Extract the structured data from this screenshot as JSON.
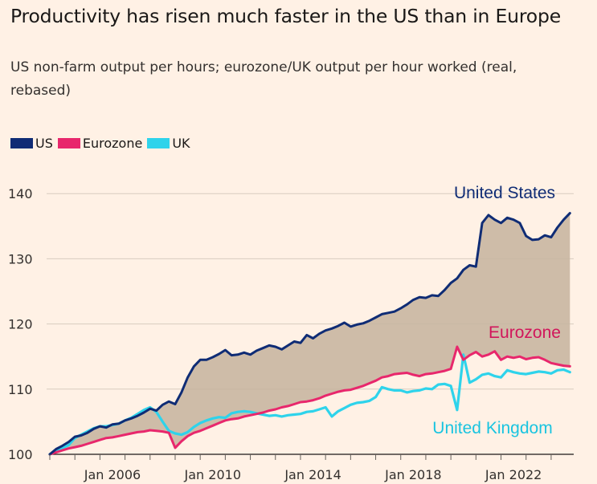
{
  "title": "Productivity has risen much faster in the US than in Europe",
  "subtitle": "US non-farm output per hours; eurozone/UK output per hour worked (real, rebased)",
  "colors": {
    "background": "#fff1e5",
    "us": "#0f2c75",
    "eurozone": "#e8276c",
    "uk": "#2ed3eb",
    "gap_fill": "#c6b39e",
    "grid": "#d8ccbf"
  },
  "chart_data": {
    "type": "line",
    "title": "Productivity has risen much faster in the US than in Europe",
    "subtitle": "US non-farm output per hours; eurozone/UK output per hour worked (real, rebased)",
    "xlabel": "",
    "ylabel": "",
    "ylim": [
      100,
      142
    ],
    "yticks": [
      100,
      110,
      120,
      130,
      140
    ],
    "xtick_labels": [
      "Jan 2006",
      "Jan 2010",
      "Jan 2014",
      "Jan 2018",
      "Jan 2022"
    ],
    "xtick_values": [
      2006,
      2010,
      2014,
      2018,
      2022
    ],
    "xlim": [
      2004.0,
      2024.9
    ],
    "grid": "horizontal",
    "legend_position": "top-left",
    "fill_between": [
      "US",
      "Eurozone"
    ],
    "legend": [
      "US",
      "Eurozone",
      "UK"
    ],
    "series": [
      {
        "name": "US",
        "label": "United States",
        "color": "#0f2c75",
        "x": [
          2004.0,
          2004.25,
          2004.5,
          2004.75,
          2005.0,
          2005.25,
          2005.5,
          2005.75,
          2006.0,
          2006.25,
          2006.5,
          2006.75,
          2007.0,
          2007.25,
          2007.5,
          2007.75,
          2008.0,
          2008.25,
          2008.5,
          2008.75,
          2009.0,
          2009.25,
          2009.5,
          2009.75,
          2010.0,
          2010.25,
          2010.5,
          2010.75,
          2011.0,
          2011.25,
          2011.5,
          2011.75,
          2012.0,
          2012.25,
          2012.5,
          2012.75,
          2013.0,
          2013.25,
          2013.5,
          2013.75,
          2014.0,
          2014.25,
          2014.5,
          2014.75,
          2015.0,
          2015.25,
          2015.5,
          2015.75,
          2016.0,
          2016.25,
          2016.5,
          2016.75,
          2017.0,
          2017.25,
          2017.5,
          2017.75,
          2018.0,
          2018.25,
          2018.5,
          2018.75,
          2019.0,
          2019.25,
          2019.5,
          2019.75,
          2020.0,
          2020.25,
          2020.5,
          2020.75,
          2021.0,
          2021.25,
          2021.5,
          2021.75,
          2022.0,
          2022.25,
          2022.5,
          2022.75,
          2023.0,
          2023.25,
          2023.5,
          2023.75,
          2024.0,
          2024.25,
          2024.5,
          2024.75
        ],
        "values": [
          100.0,
          100.8,
          101.3,
          101.9,
          102.7,
          102.9,
          103.3,
          103.9,
          104.3,
          104.1,
          104.6,
          104.7,
          105.2,
          105.5,
          105.9,
          106.4,
          107.0,
          106.7,
          107.6,
          108.1,
          107.7,
          109.5,
          111.8,
          113.5,
          114.5,
          114.5,
          114.9,
          115.4,
          116.0,
          115.2,
          115.3,
          115.6,
          115.3,
          115.9,
          116.3,
          116.7,
          116.5,
          116.1,
          116.7,
          117.3,
          117.1,
          118.3,
          117.8,
          118.5,
          119.0,
          119.3,
          119.7,
          120.2,
          119.6,
          119.9,
          120.1,
          120.5,
          121.0,
          121.5,
          121.7,
          121.9,
          122.4,
          123.0,
          123.7,
          124.1,
          124.0,
          124.4,
          124.3,
          125.2,
          126.3,
          127.0,
          128.3,
          129.0,
          128.8,
          135.5,
          136.7,
          136.0,
          135.5,
          136.3,
          136.0,
          135.5,
          133.5,
          132.9,
          133.0,
          133.6,
          133.3,
          134.8,
          136.0,
          137.0
        ]
      },
      {
        "name": "Eurozone",
        "label": "Eurozone",
        "color": "#e8276c",
        "x": [
          2004.0,
          2004.25,
          2004.5,
          2004.75,
          2005.0,
          2005.25,
          2005.5,
          2005.75,
          2006.0,
          2006.25,
          2006.5,
          2006.75,
          2007.0,
          2007.25,
          2007.5,
          2007.75,
          2008.0,
          2008.25,
          2008.5,
          2008.75,
          2009.0,
          2009.25,
          2009.5,
          2009.75,
          2010.0,
          2010.25,
          2010.5,
          2010.75,
          2011.0,
          2011.25,
          2011.5,
          2011.75,
          2012.0,
          2012.25,
          2012.5,
          2012.75,
          2013.0,
          2013.25,
          2013.5,
          2013.75,
          2014.0,
          2014.25,
          2014.5,
          2014.75,
          2015.0,
          2015.25,
          2015.5,
          2015.75,
          2016.0,
          2016.25,
          2016.5,
          2016.75,
          2017.0,
          2017.25,
          2017.5,
          2017.75,
          2018.0,
          2018.25,
          2018.5,
          2018.75,
          2019.0,
          2019.25,
          2019.5,
          2019.75,
          2020.0,
          2020.25,
          2020.5,
          2020.75,
          2021.0,
          2021.25,
          2021.5,
          2021.75,
          2022.0,
          2022.25,
          2022.5,
          2022.75,
          2023.0,
          2023.25,
          2023.5,
          2023.75,
          2024.0,
          2024.25,
          2024.5,
          2024.75
        ],
        "values": [
          100.0,
          100.3,
          100.6,
          100.9,
          101.1,
          101.3,
          101.6,
          101.9,
          102.2,
          102.5,
          102.6,
          102.8,
          103.0,
          103.2,
          103.4,
          103.5,
          103.7,
          103.6,
          103.5,
          103.3,
          101.0,
          102.0,
          102.8,
          103.3,
          103.6,
          104.0,
          104.4,
          104.8,
          105.2,
          105.4,
          105.5,
          105.8,
          106.0,
          106.2,
          106.4,
          106.7,
          106.9,
          107.2,
          107.4,
          107.7,
          108.0,
          108.1,
          108.3,
          108.6,
          109.0,
          109.3,
          109.6,
          109.8,
          109.9,
          110.2,
          110.5,
          110.9,
          111.3,
          111.8,
          112.0,
          112.3,
          112.4,
          112.5,
          112.2,
          112.0,
          112.3,
          112.4,
          112.6,
          112.8,
          113.1,
          116.5,
          114.5,
          115.2,
          115.7,
          115.0,
          115.3,
          115.8,
          114.5,
          115.0,
          114.8,
          115.0,
          114.6,
          114.8,
          114.9,
          114.5,
          114.0,
          113.8,
          113.6,
          113.5
        ]
      },
      {
        "name": "UK",
        "label": "United Kingdom",
        "color": "#2ed3eb",
        "x": [
          2004.0,
          2004.25,
          2004.5,
          2004.75,
          2005.0,
          2005.25,
          2005.5,
          2005.75,
          2006.0,
          2006.25,
          2006.5,
          2006.75,
          2007.0,
          2007.25,
          2007.5,
          2007.75,
          2008.0,
          2008.25,
          2008.5,
          2008.75,
          2009.0,
          2009.25,
          2009.5,
          2009.75,
          2010.0,
          2010.25,
          2010.5,
          2010.75,
          2011.0,
          2011.25,
          2011.5,
          2011.75,
          2012.0,
          2012.25,
          2012.5,
          2012.75,
          2013.0,
          2013.25,
          2013.5,
          2013.75,
          2014.0,
          2014.25,
          2014.5,
          2014.75,
          2015.0,
          2015.25,
          2015.5,
          2015.75,
          2016.0,
          2016.25,
          2016.5,
          2016.75,
          2017.0,
          2017.25,
          2017.5,
          2017.75,
          2018.0,
          2018.25,
          2018.5,
          2018.75,
          2019.0,
          2019.25,
          2019.5,
          2019.75,
          2020.0,
          2020.25,
          2020.5,
          2020.75,
          2021.0,
          2021.25,
          2021.5,
          2021.75,
          2022.0,
          2022.25,
          2022.5,
          2022.75,
          2023.0,
          2023.25,
          2023.5,
          2023.75,
          2024.0,
          2024.25,
          2024.5,
          2024.75
        ],
        "values": [
          100.0,
          100.6,
          101.0,
          101.4,
          102.5,
          103.0,
          103.5,
          104.0,
          104.3,
          104.3,
          104.5,
          104.7,
          105.2,
          105.6,
          106.2,
          106.8,
          107.2,
          106.5,
          105.0,
          103.6,
          103.2,
          103.0,
          103.4,
          104.2,
          104.8,
          105.2,
          105.5,
          105.7,
          105.6,
          106.3,
          106.5,
          106.6,
          106.5,
          106.3,
          106.1,
          105.9,
          106.0,
          105.8,
          106.0,
          106.1,
          106.2,
          106.5,
          106.6,
          106.9,
          107.2,
          105.8,
          106.6,
          107.1,
          107.6,
          107.9,
          108.0,
          108.2,
          108.8,
          110.3,
          110.0,
          109.8,
          109.8,
          109.5,
          109.7,
          109.8,
          110.1,
          110.0,
          110.7,
          110.8,
          110.5,
          106.8,
          115.3,
          111.0,
          111.5,
          112.2,
          112.4,
          112.0,
          111.8,
          112.9,
          112.6,
          112.4,
          112.3,
          112.5,
          112.7,
          112.6,
          112.4,
          112.9,
          113.0,
          112.6
        ]
      }
    ],
    "annotations": [
      {
        "text": "United States",
        "series": "US",
        "color": "#0f2c75"
      },
      {
        "text": "Eurozone",
        "series": "Eurozone",
        "color": "#d1165b"
      },
      {
        "text": "United Kingdom",
        "series": "UK",
        "color": "#19c4e0"
      }
    ]
  }
}
